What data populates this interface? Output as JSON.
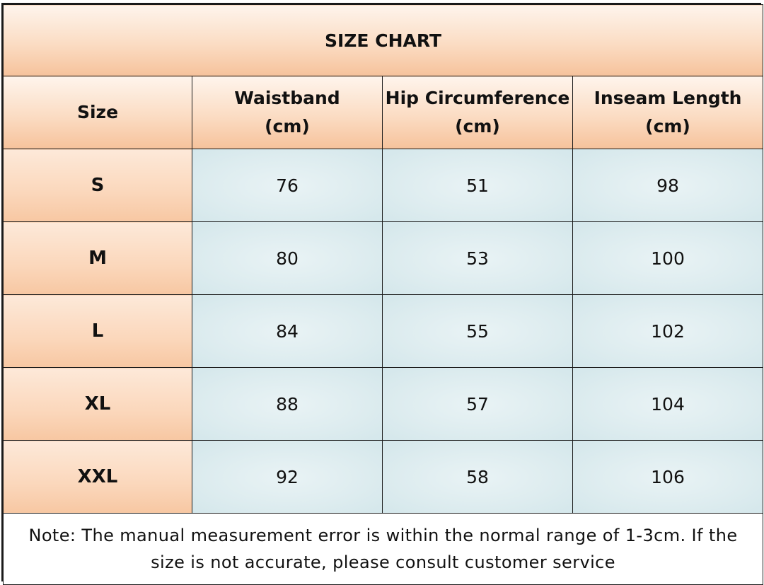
{
  "title": "SIZE CHART",
  "headers": [
    {
      "line1": "Size",
      "line2": ""
    },
    {
      "line1": "Waistband",
      "line2": "(cm)"
    },
    {
      "line1": "Hip Circumference",
      "line2": "(cm)"
    },
    {
      "line1": "Inseam Length",
      "line2": "(cm)"
    }
  ],
  "rows": [
    {
      "size": "S",
      "waistband": "76",
      "hip": "51",
      "inseam": "98"
    },
    {
      "size": "M",
      "waistband": "80",
      "hip": "53",
      "inseam": "100"
    },
    {
      "size": "L",
      "waistband": "84",
      "hip": "55",
      "inseam": "102"
    },
    {
      "size": "XL",
      "waistband": "88",
      "hip": "57",
      "inseam": "104"
    },
    {
      "size": "XXL",
      "waistband": "92",
      "hip": "58",
      "inseam": "106"
    }
  ],
  "note": {
    "line1": "Note: The manual measurement error is within the normal range of 1-3cm. If the",
    "line2": "size is not accurate, please consult customer service"
  },
  "colors": {
    "header_fill": "#fbdcc3",
    "value_fill": "#ddecef",
    "border": "#1a1a1a"
  }
}
